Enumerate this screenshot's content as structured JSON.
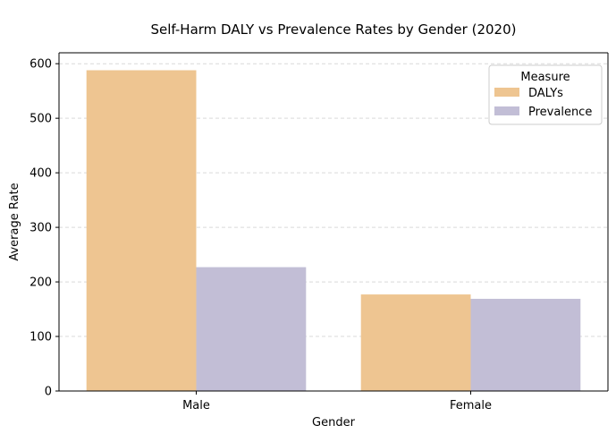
{
  "chart_data": {
    "type": "bar",
    "title": "Self-Harm DALY vs Prevalence Rates by Gender (2020)",
    "xlabel": "Gender",
    "ylabel": "Average Rate",
    "categories": [
      "Male",
      "Female"
    ],
    "series": [
      {
        "name": "DALYs",
        "values": [
          588,
          177
        ],
        "color": "#EEC591"
      },
      {
        "name": "Prevalence",
        "values": [
          227,
          169
        ],
        "color": "#C2BED6"
      }
    ],
    "ylim": [
      0,
      620
    ],
    "yticks": [
      0,
      100,
      200,
      300,
      400,
      500,
      600
    ],
    "grid": "y-dashed",
    "legend": {
      "title": "Measure",
      "placement": "top-right"
    }
  }
}
